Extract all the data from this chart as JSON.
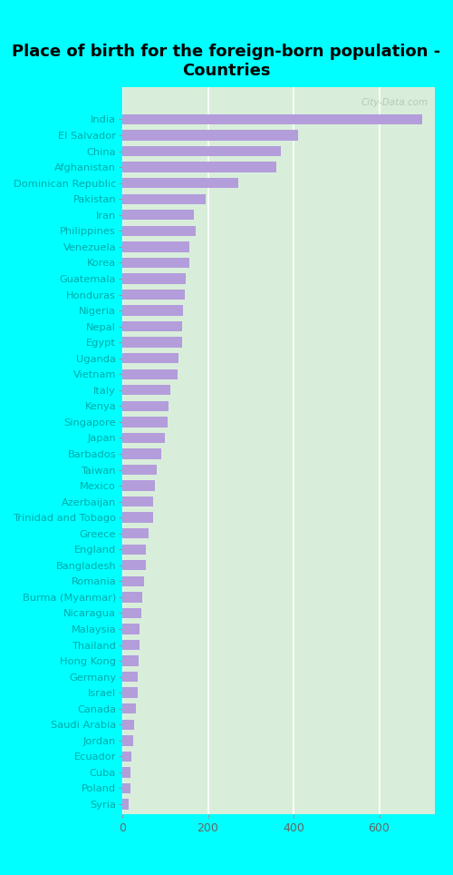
{
  "title": "Place of birth for the foreign-born population -\nCountries",
  "categories": [
    "India",
    "El Salvador",
    "China",
    "Afghanistan",
    "Dominican Republic",
    "Pakistan",
    "Iran",
    "Philippines",
    "Venezuela",
    "Korea",
    "Guatemala",
    "Honduras",
    "Nigeria",
    "Nepal",
    "Egypt",
    "Uganda",
    "Vietnam",
    "Italy",
    "Kenya",
    "Singapore",
    "Japan",
    "Barbados",
    "Taiwan",
    "Mexico",
    "Azerbaijan",
    "Trinidad and Tobago",
    "Greece",
    "England",
    "Bangladesh",
    "Romania",
    "Burma (Myanmar)",
    "Nicaragua",
    "Malaysia",
    "Thailand",
    "Hong Kong",
    "Germany",
    "Israel",
    "Canada",
    "Saudi Arabia",
    "Jordan",
    "Ecuador",
    "Cuba",
    "Poland",
    "Syria"
  ],
  "values": [
    700,
    410,
    370,
    360,
    270,
    195,
    168,
    172,
    157,
    156,
    148,
    147,
    142,
    140,
    140,
    132,
    130,
    112,
    107,
    106,
    100,
    90,
    80,
    76,
    72,
    71,
    62,
    56,
    55,
    51,
    46,
    45,
    41,
    40,
    38,
    36,
    35,
    31,
    28,
    25,
    22,
    20,
    18,
    14
  ],
  "bar_color": "#b39ddb",
  "background_color": "#00FFFF",
  "plot_bg_color": "#d8eeda",
  "title_color": "#000000",
  "label_color": "#00aaaa",
  "tick_color": "#666666",
  "grid_color": "#c8e6c9",
  "xlabel_ticks": [
    0,
    200,
    400,
    600
  ],
  "xlim": [
    0,
    730
  ],
  "watermark": "City-Data.com"
}
